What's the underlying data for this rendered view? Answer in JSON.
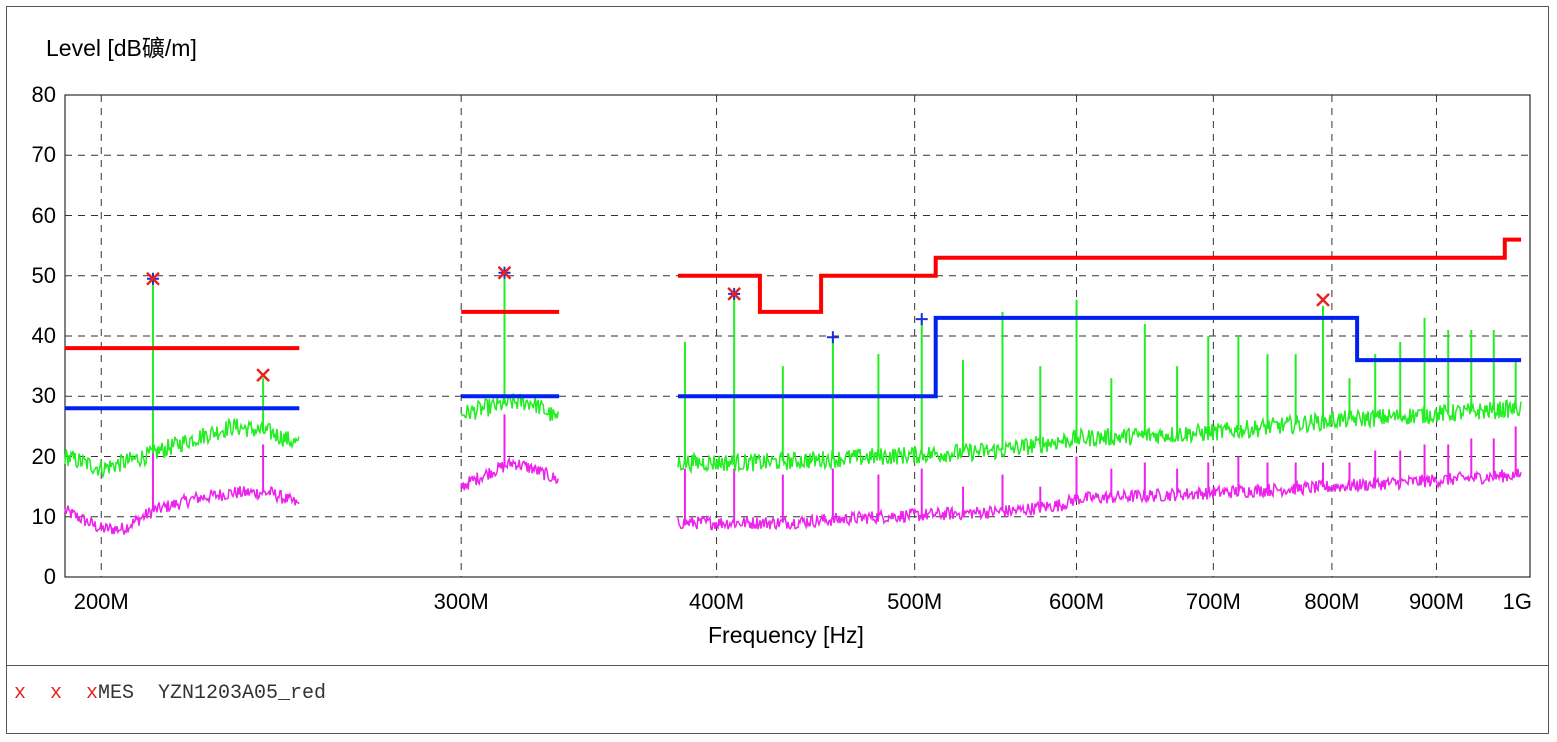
{
  "chart_data": {
    "type": "line",
    "ylabel": "Level [dB礦/m]",
    "xlabel": "Frequency [Hz]",
    "ylim": [
      0,
      80
    ],
    "yticks": [
      "0",
      "10",
      "20",
      "30",
      "40",
      "50",
      "60",
      "70",
      "80"
    ],
    "xscale": "log",
    "xlim_mhz": [
      192,
      1000
    ],
    "xticks": [
      {
        "mhz": 200,
        "label": "200M"
      },
      {
        "mhz": 300,
        "label": "300M"
      },
      {
        "mhz": 400,
        "label": "400M"
      },
      {
        "mhz": 500,
        "label": "500M"
      },
      {
        "mhz": 600,
        "label": "600M"
      },
      {
        "mhz": 700,
        "label": "700M"
      },
      {
        "mhz": 800,
        "label": "800M"
      },
      {
        "mhz": 900,
        "label": "900M"
      },
      {
        "mhz": 1000,
        "label": "1G"
      }
    ],
    "grid": true,
    "colors": {
      "limit_qp": "#ff0000",
      "limit_av": "#0022ee",
      "peak": "#22ee22",
      "average": "#ee22ee",
      "marker_x": "#e8231f",
      "marker_plus": "#1f2fd6"
    },
    "segments": [
      {
        "range_mhz": [
          192,
          250
        ],
        "limit_qp": [
          [
            192,
            38
          ],
          [
            250,
            38
          ]
        ],
        "limit_av": [
          [
            192,
            28
          ],
          [
            250,
            28
          ]
        ],
        "peak_base": [
          [
            192,
            20
          ],
          [
            200,
            18
          ],
          [
            210,
            20
          ],
          [
            222,
            23
          ],
          [
            232,
            25
          ],
          [
            242,
            24
          ],
          [
            250,
            22
          ]
        ],
        "avg_base": [
          [
            192,
            11
          ],
          [
            200,
            8
          ],
          [
            205,
            8
          ],
          [
            212,
            11
          ],
          [
            222,
            13
          ],
          [
            232,
            14
          ],
          [
            242,
            14
          ],
          [
            250,
            12
          ]
        ],
        "spikes": [
          {
            "mhz": 212,
            "peak": 49,
            "avg": 21
          },
          {
            "mhz": 240,
            "peak": 33,
            "avg": 22
          }
        ]
      },
      {
        "range_mhz": [
          300,
          335
        ],
        "limit_qp": [
          [
            300,
            44
          ],
          [
            335,
            44
          ]
        ],
        "limit_av": [
          [
            300,
            30
          ],
          [
            335,
            30
          ]
        ],
        "peak_base": [
          [
            300,
            27
          ],
          [
            308,
            28
          ],
          [
            318,
            29
          ],
          [
            325,
            29
          ],
          [
            335,
            26
          ]
        ],
        "avg_base": [
          [
            300,
            15
          ],
          [
            308,
            17
          ],
          [
            318,
            19
          ],
          [
            325,
            18
          ],
          [
            335,
            16
          ]
        ],
        "spikes": [
          {
            "mhz": 315,
            "peak": 50,
            "avg": 27
          }
        ]
      },
      {
        "range_mhz": [
          383,
          990
        ],
        "limit_qp": [
          [
            383,
            50
          ],
          [
            420,
            50
          ],
          [
            420,
            44
          ],
          [
            450,
            44
          ],
          [
            450,
            50
          ],
          [
            512,
            50
          ],
          [
            512,
            53
          ],
          [
            972,
            53
          ],
          [
            972,
            56
          ],
          [
            990,
            56
          ]
        ],
        "limit_av": [
          [
            383,
            30
          ],
          [
            512,
            30
          ],
          [
            512,
            43
          ],
          [
            823,
            43
          ],
          [
            823,
            36
          ],
          [
            990,
            36
          ]
        ],
        "peak_base": [
          [
            383,
            19
          ],
          [
            420,
            19
          ],
          [
            480,
            20
          ],
          [
            550,
            21
          ],
          [
            600,
            23
          ],
          [
            700,
            24
          ],
          [
            800,
            26
          ],
          [
            990,
            28
          ]
        ],
        "avg_base": [
          [
            383,
            9
          ],
          [
            430,
            9
          ],
          [
            480,
            10
          ],
          [
            560,
            11
          ],
          [
            590,
            12
          ],
          [
            600,
            13
          ],
          [
            700,
            14
          ],
          [
            800,
            15
          ],
          [
            990,
            17
          ]
        ],
        "spikes": [
          {
            "mhz": 386,
            "peak": 39,
            "avg": 18
          },
          {
            "mhz": 408,
            "peak": 47,
            "avg": 18
          },
          {
            "mhz": 431,
            "peak": 35,
            "avg": 17
          },
          {
            "mhz": 456,
            "peak": 40,
            "avg": 18
          },
          {
            "mhz": 480,
            "peak": 37,
            "avg": 17
          },
          {
            "mhz": 504,
            "peak": 43,
            "avg": 18
          },
          {
            "mhz": 528,
            "peak": 36,
            "avg": 15
          },
          {
            "mhz": 552,
            "peak": 44,
            "avg": 17
          },
          {
            "mhz": 576,
            "peak": 35,
            "avg": 15
          },
          {
            "mhz": 600,
            "peak": 46,
            "avg": 20
          },
          {
            "mhz": 624,
            "peak": 33,
            "avg": 18
          },
          {
            "mhz": 648,
            "peak": 42,
            "avg": 19
          },
          {
            "mhz": 672,
            "peak": 35,
            "avg": 18
          },
          {
            "mhz": 696,
            "peak": 40,
            "avg": 19
          },
          {
            "mhz": 720,
            "peak": 40,
            "avg": 20
          },
          {
            "mhz": 744,
            "peak": 37,
            "avg": 19
          },
          {
            "mhz": 768,
            "peak": 37,
            "avg": 19
          },
          {
            "mhz": 792,
            "peak": 45,
            "avg": 19
          },
          {
            "mhz": 816,
            "peak": 33,
            "avg": 19
          },
          {
            "mhz": 840,
            "peak": 37,
            "avg": 21
          },
          {
            "mhz": 864,
            "peak": 39,
            "avg": 21
          },
          {
            "mhz": 888,
            "peak": 43,
            "avg": 22
          },
          {
            "mhz": 912,
            "peak": 41,
            "avg": 22
          },
          {
            "mhz": 936,
            "peak": 41,
            "avg": 23
          },
          {
            "mhz": 960,
            "peak": 41,
            "avg": 23
          },
          {
            "mhz": 984,
            "peak": 36,
            "avg": 25
          }
        ]
      }
    ],
    "markers_x": [
      {
        "mhz": 212,
        "level": 49.5
      },
      {
        "mhz": 240,
        "level": 33.5
      },
      {
        "mhz": 315,
        "level": 50.5
      },
      {
        "mhz": 408,
        "level": 47
      },
      {
        "mhz": 792,
        "level": 46
      }
    ],
    "markers_plus": [
      {
        "mhz": 212,
        "level": 49.5
      },
      {
        "mhz": 315,
        "level": 50.5
      },
      {
        "mhz": 408,
        "level": 47
      },
      {
        "mhz": 456,
        "level": 39.8
      },
      {
        "mhz": 504,
        "level": 42.8
      }
    ]
  },
  "legend": {
    "symbol": "x  x  x",
    "label": "MES  YZN1203A05_red"
  }
}
